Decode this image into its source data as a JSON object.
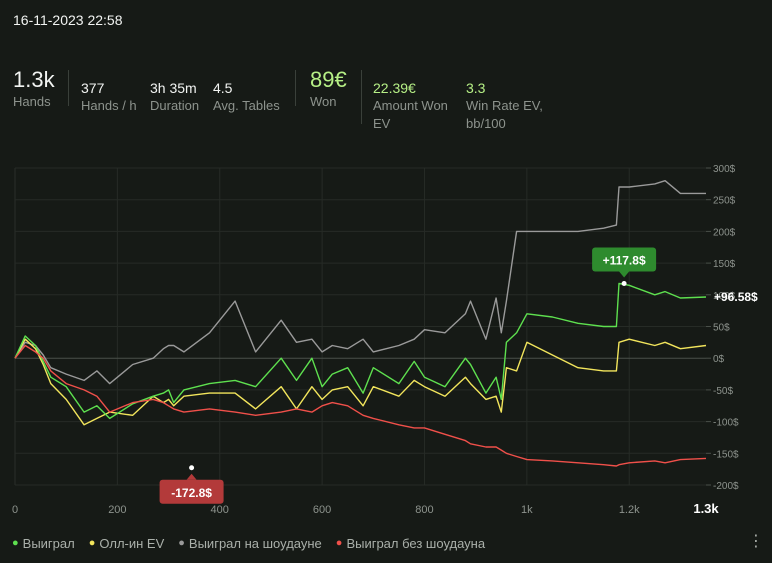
{
  "header": {
    "datetime": "16-11-2023 22:58"
  },
  "stats": {
    "hands": {
      "value": "1.3k",
      "label": "Hands"
    },
    "hands_per_hour": {
      "value": "377",
      "label": "Hands / h"
    },
    "duration": {
      "value": "3h 35m",
      "label": "Duration"
    },
    "avg_tables": {
      "value": "4.5",
      "label": "Avg. Tables"
    },
    "won": {
      "value": "89€",
      "label": "Won"
    },
    "amount_won_ev": {
      "value": "22.39€",
      "label_line1": "Amount Won",
      "label_line2": "EV"
    },
    "win_rate_ev": {
      "value": "3.3",
      "label_line1": "Win Rate EV,",
      "label_line2": "bb/100"
    }
  },
  "legend": [
    {
      "label": "Выиграл",
      "color": "#5ee04f"
    },
    {
      "label": "Олл-ин EV",
      "color": "#f2e55c"
    },
    {
      "label": "Выиграл на шоудауне",
      "color": "#9a9a9a"
    },
    {
      "label": "Выиграл без шоудауна",
      "color": "#f0504a"
    }
  ],
  "chart_data": {
    "type": "line",
    "xlim": [
      0,
      1350
    ],
    "ylim": [
      -200,
      300
    ],
    "x_ticks": [
      {
        "value": 0,
        "label": "0"
      },
      {
        "value": 200,
        "label": "200"
      },
      {
        "value": 400,
        "label": "400"
      },
      {
        "value": 600,
        "label": "600"
      },
      {
        "value": 800,
        "label": "800"
      },
      {
        "value": 1000,
        "label": "1k"
      },
      {
        "value": 1200,
        "label": "1.2k"
      },
      {
        "value": 1350,
        "label": "1.3k"
      }
    ],
    "y_ticks": [
      {
        "value": 300,
        "label": "300$"
      },
      {
        "value": 250,
        "label": "250$"
      },
      {
        "value": 200,
        "label": "200$"
      },
      {
        "value": 150,
        "label": "150$"
      },
      {
        "value": 100,
        "label": "100$"
      },
      {
        "value": 50,
        "label": "50$"
      },
      {
        "value": 0,
        "label": "0$"
      },
      {
        "value": -50,
        "label": "-50$"
      },
      {
        "value": -100,
        "label": "-100$"
      },
      {
        "value": -150,
        "label": "-150$"
      },
      {
        "value": -200,
        "label": "-200$"
      }
    ],
    "series": [
      {
        "name": "Выиграл na шоудауне",
        "color": "#9a9a9a",
        "x": [
          0,
          20,
          40,
          55,
          70,
          100,
          135,
          160,
          185,
          230,
          270,
          290,
          300,
          310,
          330,
          380,
          430,
          470,
          520,
          550,
          580,
          600,
          620,
          650,
          680,
          700,
          750,
          780,
          800,
          840,
          880,
          890,
          920,
          940,
          950,
          960,
          980,
          1000,
          1050,
          1100,
          1150,
          1175,
          1180,
          1200,
          1250,
          1270,
          1300,
          1350
        ],
        "y": [
          0,
          25,
          20,
          5,
          -15,
          -25,
          -35,
          -20,
          -40,
          -10,
          0,
          15,
          20,
          20,
          10,
          40,
          90,
          10,
          60,
          25,
          30,
          10,
          20,
          15,
          30,
          10,
          20,
          30,
          45,
          40,
          70,
          90,
          30,
          95,
          40,
          90,
          200,
          200,
          200,
          200,
          205,
          210,
          270,
          270,
          275,
          280,
          260,
          260
        ]
      },
      {
        "name": "Олл-ин EV",
        "color": "#f2e55c",
        "x": [
          0,
          20,
          40,
          55,
          70,
          100,
          135,
          160,
          185,
          230,
          270,
          290,
          300,
          310,
          330,
          380,
          430,
          470,
          520,
          550,
          580,
          600,
          620,
          650,
          680,
          700,
          750,
          780,
          800,
          840,
          880,
          890,
          920,
          940,
          950,
          960,
          980,
          1000,
          1050,
          1100,
          1150,
          1175,
          1180,
          1200,
          1250,
          1270,
          1300,
          1350
        ],
        "y": [
          0,
          30,
          15,
          -10,
          -40,
          -65,
          -105,
          -95,
          -85,
          -90,
          -60,
          -70,
          -65,
          -75,
          -60,
          -55,
          -55,
          -80,
          -45,
          -80,
          -45,
          -65,
          -50,
          -45,
          -75,
          -45,
          -60,
          -35,
          -45,
          -60,
          -30,
          -40,
          -65,
          -60,
          -85,
          -15,
          -20,
          25,
          5,
          -15,
          -20,
          -20,
          25,
          30,
          20,
          25,
          15,
          20
        ]
      },
      {
        "name": "Выиграл",
        "color": "#5ee04f",
        "x": [
          0,
          20,
          40,
          55,
          70,
          100,
          135,
          160,
          185,
          230,
          270,
          290,
          300,
          310,
          330,
          380,
          430,
          470,
          520,
          550,
          580,
          600,
          620,
          650,
          680,
          700,
          750,
          780,
          800,
          840,
          880,
          890,
          920,
          940,
          950,
          960,
          980,
          1000,
          1050,
          1100,
          1150,
          1175,
          1180,
          1200,
          1250,
          1270,
          1300,
          1350
        ],
        "y": [
          0,
          35,
          20,
          -5,
          -30,
          -45,
          -85,
          -75,
          -95,
          -72,
          -60,
          -55,
          -50,
          -70,
          -50,
          -40,
          -35,
          -45,
          0,
          -35,
          0,
          -45,
          -25,
          -15,
          -55,
          -15,
          -40,
          -5,
          -30,
          -45,
          0,
          -10,
          -55,
          -30,
          -65,
          25,
          40,
          70,
          65,
          55,
          50,
          50,
          117.8,
          115,
          100,
          105,
          95,
          96.58
        ]
      },
      {
        "name": "Выиграл без шоудауна",
        "color": "#f0504a",
        "x": [
          0,
          20,
          40,
          55,
          70,
          100,
          135,
          160,
          185,
          230,
          270,
          290,
          300,
          310,
          330,
          380,
          430,
          470,
          520,
          550,
          580,
          600,
          620,
          650,
          680,
          700,
          750,
          780,
          800,
          840,
          880,
          890,
          920,
          940,
          950,
          960,
          980,
          1000,
          1050,
          1100,
          1150,
          1175,
          1180,
          1200,
          1250,
          1270,
          1300,
          1350
        ],
        "y": [
          0,
          20,
          10,
          0,
          -20,
          -40,
          -50,
          -60,
          -85,
          -70,
          -65,
          -70,
          -75,
          -80,
          -85,
          -80,
          -85,
          -90,
          -85,
          -80,
          -85,
          -75,
          -70,
          -75,
          -90,
          -95,
          -105,
          -110,
          -110,
          -120,
          -130,
          -135,
          -140,
          -140,
          -145,
          -150,
          -155,
          -160,
          -162,
          -165,
          -168,
          -170,
          -168,
          -165,
          -162,
          -165,
          -160,
          -158
        ]
      }
    ],
    "annotations": [
      {
        "text": "+117.8$",
        "x": 1190,
        "y": 117.8,
        "color": "#2e8b2e"
      },
      {
        "text": "-172.8$",
        "x": 345,
        "y": -172.8,
        "color": "#b33a3a"
      },
      {
        "text": "+96.58$",
        "x": 1350,
        "y": 96.58,
        "color": "#ffffff"
      }
    ]
  }
}
